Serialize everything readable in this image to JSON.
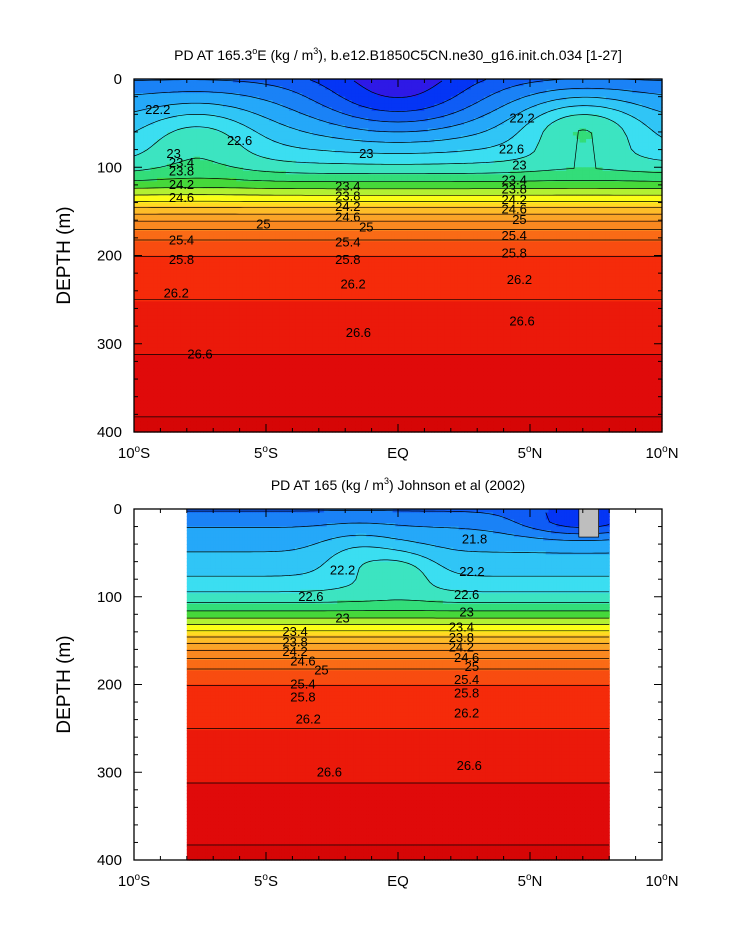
{
  "chart_data": [
    {
      "type": "contour",
      "title_prefix": "PD AT 165.3",
      "title_deg": "o",
      "title_mid": "E (kg / m",
      "title_sup": "3",
      "title_suffix": "), b.e12.B1850C5CN.ne30_g16.init.ch.034 [1-27]",
      "ylabel": "DEPTH (m)",
      "xlabel": "",
      "x_ticks": [
        {
          "v": -10,
          "num": "10",
          "deg": "o",
          "hemi": "S"
        },
        {
          "v": -5,
          "num": "5",
          "deg": "o",
          "hemi": "S"
        },
        {
          "v": 0,
          "num": "EQ",
          "deg": "",
          "hemi": ""
        },
        {
          "v": 5,
          "num": "5",
          "deg": "o",
          "hemi": "N"
        },
        {
          "v": 10,
          "num": "10",
          "deg": "o",
          "hemi": "N"
        }
      ],
      "y_ticks": [
        0,
        100,
        200,
        300,
        400
      ],
      "xlim": [
        -10,
        10
      ],
      "ylim": [
        0,
        400
      ],
      "y_reversed": true,
      "data_x_range": [
        -10,
        10
      ],
      "level_start": 21.8,
      "level_step": 0.2,
      "level_end": 27.0,
      "levels_labeled": [
        22.2,
        22.6,
        23.0,
        23.4,
        23.8,
        24.2,
        24.6,
        25.0,
        25.4,
        25.8,
        26.2,
        26.6
      ],
      "features": [
        {
          "x": -7.6,
          "d": 65,
          "a": 38,
          "w": 0.75,
          "amp": 0.4
        },
        {
          "x": 7.0,
          "d": 55,
          "a": 35,
          "w": 0.75,
          "amp": 0.55
        },
        {
          "x": 0.0,
          "d": 20,
          "a": 45,
          "w": 1.1,
          "amp": -0.6
        }
      ],
      "contour_labels": [
        {
          "t": "22.2",
          "x": -9.1,
          "d": 35
        },
        {
          "t": "22.2",
          "x": 4.7,
          "d": 45
        },
        {
          "t": "22.6",
          "x": -6.0,
          "d": 70
        },
        {
          "t": "22.6",
          "x": 4.3,
          "d": 80
        },
        {
          "t": "23",
          "x": -8.5,
          "d": 85
        },
        {
          "t": "23",
          "x": -1.2,
          "d": 85
        },
        {
          "t": "23",
          "x": 4.6,
          "d": 98
        },
        {
          "t": "23.4",
          "x": -8.2,
          "d": 95
        },
        {
          "t": "23.4",
          "x": -1.9,
          "d": 122
        },
        {
          "t": "23.4",
          "x": 4.4,
          "d": 115
        },
        {
          "t": "23.8",
          "x": -8.2,
          "d": 105
        },
        {
          "t": "23.8",
          "x": -1.9,
          "d": 133
        },
        {
          "t": "23.8",
          "x": 4.4,
          "d": 125
        },
        {
          "t": "24.2",
          "x": -8.2,
          "d": 120
        },
        {
          "t": "24.2",
          "x": -1.9,
          "d": 145
        },
        {
          "t": "24.2",
          "x": 4.4,
          "d": 137
        },
        {
          "t": "24.6",
          "x": -8.2,
          "d": 135
        },
        {
          "t": "24.6",
          "x": -1.9,
          "d": 157
        },
        {
          "t": "24.6",
          "x": 4.4,
          "d": 148
        },
        {
          "t": "25",
          "x": -5.1,
          "d": 165
        },
        {
          "t": "25",
          "x": -1.2,
          "d": 168
        },
        {
          "t": "25",
          "x": 4.6,
          "d": 160
        },
        {
          "t": "25.4",
          "x": -8.2,
          "d": 183
        },
        {
          "t": "25.4",
          "x": -1.9,
          "d": 185
        },
        {
          "t": "25.4",
          "x": 4.4,
          "d": 178
        },
        {
          "t": "25.8",
          "x": -8.2,
          "d": 205
        },
        {
          "t": "25.8",
          "x": -1.9,
          "d": 205
        },
        {
          "t": "25.8",
          "x": 4.4,
          "d": 198
        },
        {
          "t": "26.2",
          "x": -8.4,
          "d": 243
        },
        {
          "t": "26.2",
          "x": -1.7,
          "d": 233
        },
        {
          "t": "26.2",
          "x": 4.6,
          "d": 228
        },
        {
          "t": "26.6",
          "x": -1.5,
          "d": 288
        },
        {
          "t": "26.6",
          "x": 4.7,
          "d": 275
        },
        {
          "t": "26.6",
          "x": -7.5,
          "d": 312
        }
      ]
    },
    {
      "type": "contour",
      "title_prefix": "PD AT 165",
      "title_deg": "",
      "title_mid": " (kg / m",
      "title_sup": "3",
      "title_suffix": ") Johnson et al (2002)",
      "ylabel": "DEPTH (m)",
      "xlabel": "",
      "x_ticks": [
        {
          "v": -10,
          "num": "10",
          "deg": "o",
          "hemi": "S"
        },
        {
          "v": -5,
          "num": "5",
          "deg": "o",
          "hemi": "S"
        },
        {
          "v": 0,
          "num": "EQ",
          "deg": "",
          "hemi": ""
        },
        {
          "v": 5,
          "num": "5",
          "deg": "o",
          "hemi": "N"
        },
        {
          "v": 10,
          "num": "10",
          "deg": "o",
          "hemi": "N"
        }
      ],
      "y_ticks": [
        0,
        100,
        200,
        300,
        400
      ],
      "xlim": [
        -10,
        10
      ],
      "ylim": [
        0,
        400
      ],
      "y_reversed": true,
      "data_x_range": [
        -8,
        8
      ],
      "level_start": 21.2,
      "level_step": 0.2,
      "level_end": 27.0,
      "levels_labeled": [
        21.8,
        22.2,
        22.6,
        23.0,
        23.4,
        23.8,
        24.2,
        24.6,
        25.0,
        25.4,
        25.8,
        26.2,
        26.6
      ],
      "features": [
        {
          "x": -1.5,
          "d": 55,
          "a": 30,
          "w": 0.5,
          "amp": 0.25
        },
        {
          "x": 0.2,
          "d": 70,
          "a": 25,
          "w": 0.45,
          "amp": 0.3
        },
        {
          "x": 7.0,
          "d": 15,
          "a": 18,
          "w": 0.8,
          "amp": -0.45
        }
      ],
      "missing_patch": {
        "x": [
          6.85,
          7.6
        ],
        "d": [
          0,
          32
        ],
        "color": "#bebebe"
      },
      "contour_labels": [
        {
          "t": "21.8",
          "x": 2.9,
          "d": 35
        },
        {
          "t": "22.2",
          "x": -2.1,
          "d": 70
        },
        {
          "t": "22.2",
          "x": 2.8,
          "d": 72
        },
        {
          "t": "22.6",
          "x": -3.3,
          "d": 100
        },
        {
          "t": "22.6",
          "x": 2.6,
          "d": 98
        },
        {
          "t": "23",
          "x": -2.1,
          "d": 125
        },
        {
          "t": "23",
          "x": 2.6,
          "d": 118
        },
        {
          "t": "23.4",
          "x": -3.9,
          "d": 140
        },
        {
          "t": "23.4",
          "x": 2.4,
          "d": 135
        },
        {
          "t": "23.8",
          "x": -3.9,
          "d": 152
        },
        {
          "t": "23.8",
          "x": 2.4,
          "d": 147
        },
        {
          "t": "24.2",
          "x": -3.9,
          "d": 163
        },
        {
          "t": "24.2",
          "x": 2.4,
          "d": 158
        },
        {
          "t": "24.6",
          "x": -3.6,
          "d": 174
        },
        {
          "t": "24.6",
          "x": 2.6,
          "d": 170
        },
        {
          "t": "25",
          "x": -2.9,
          "d": 184
        },
        {
          "t": "25",
          "x": 2.8,
          "d": 180
        },
        {
          "t": "25.4",
          "x": -3.6,
          "d": 200
        },
        {
          "t": "25.4",
          "x": 2.6,
          "d": 195
        },
        {
          "t": "25.8",
          "x": -3.6,
          "d": 215
        },
        {
          "t": "25.8",
          "x": 2.6,
          "d": 210
        },
        {
          "t": "26.2",
          "x": -3.4,
          "d": 240
        },
        {
          "t": "26.2",
          "x": 2.6,
          "d": 233
        },
        {
          "t": "26.6",
          "x": -2.6,
          "d": 300
        },
        {
          "t": "26.6",
          "x": 2.7,
          "d": 293
        }
      ]
    }
  ]
}
